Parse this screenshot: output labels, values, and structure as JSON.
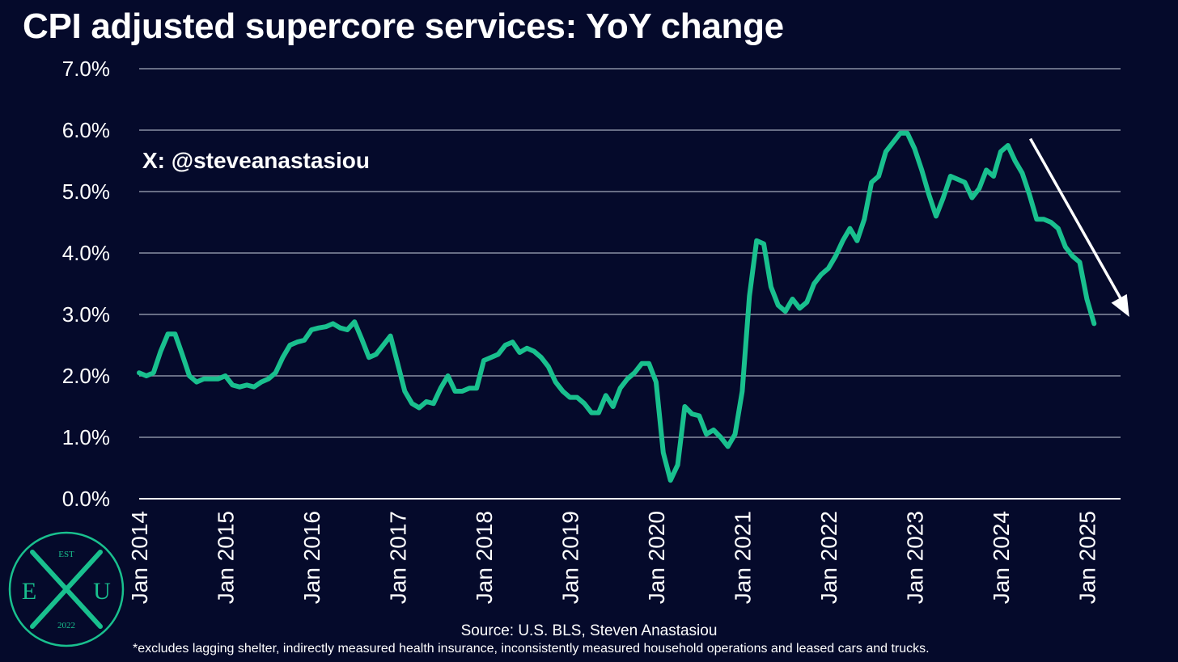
{
  "title": "CPI adjusted supercore services: YoY change",
  "annotation": "X: @steveanastasiou",
  "source": "Source: U.S. BLS, Steven Anastasiou",
  "footnote": "*excludes lagging shelter, indirectly measured health insurance, inconsistently measured household operations and leased cars and trucks.",
  "logo": {
    "top": "EST",
    "left": "E",
    "right": "U",
    "bottom": "2022",
    "color": "#19c08e"
  },
  "colors": {
    "background": "#050a2b",
    "line": "#19c08e",
    "grid": "#8a8fa3",
    "text": "#ffffff",
    "arrow": "#ffffff"
  },
  "chart_data": {
    "type": "line",
    "title": "CPI adjusted supercore services: YoY change",
    "ylim": [
      0,
      7
    ],
    "yticks": [
      0,
      1,
      2,
      3,
      4,
      5,
      6,
      7
    ],
    "ytick_labels": [
      "0.0%",
      "1.0%",
      "2.0%",
      "3.0%",
      "4.0%",
      "5.0%",
      "6.0%",
      "7.0%"
    ],
    "xticks": [
      "Jan 2014",
      "Jan 2015",
      "Jan 2016",
      "Jan 2017",
      "Jan 2018",
      "Jan 2019",
      "Jan 2020",
      "Jan 2021",
      "Jan 2022",
      "Jan 2023",
      "Jan 2024",
      "Jan 2025"
    ],
    "x_start": "Jan 2014",
    "x_end": "Apr 2025",
    "grid": true,
    "trend_arrow": {
      "from": "Apr 2024",
      "to": "Jun 2025",
      "y_from": 5.9,
      "y_to": 3.0
    },
    "series": [
      {
        "color": "#19c08e",
        "values": [
          2.05,
          2.0,
          2.05,
          2.4,
          2.68,
          2.68,
          2.35,
          2.0,
          1.9,
          1.95,
          1.95,
          1.95,
          2.0,
          1.85,
          1.82,
          1.85,
          1.82,
          1.9,
          1.95,
          2.05,
          2.3,
          2.5,
          2.55,
          2.58,
          2.75,
          2.78,
          2.8,
          2.85,
          2.78,
          2.75,
          2.88,
          2.6,
          2.3,
          2.35,
          2.5,
          2.65,
          2.2,
          1.75,
          1.55,
          1.48,
          1.58,
          1.55,
          1.8,
          2.0,
          1.75,
          1.75,
          1.8,
          1.8,
          2.25,
          2.3,
          2.35,
          2.5,
          2.55,
          2.38,
          2.45,
          2.4,
          2.3,
          2.15,
          1.9,
          1.75,
          1.65,
          1.65,
          1.55,
          1.4,
          1.4,
          1.68,
          1.5,
          1.8,
          1.95,
          2.05,
          2.2,
          2.2,
          1.9,
          0.75,
          0.3,
          0.55,
          1.5,
          1.38,
          1.35,
          1.05,
          1.12,
          1.0,
          0.85,
          1.05,
          1.75,
          3.3,
          4.2,
          4.15,
          3.45,
          3.15,
          3.05,
          3.25,
          3.1,
          3.2,
          3.5,
          3.65,
          3.75,
          3.95,
          4.2,
          4.4,
          4.2,
          4.55,
          5.15,
          5.25,
          5.65,
          5.8,
          5.95,
          5.95,
          5.7,
          5.35,
          4.95,
          4.6,
          4.9,
          5.25,
          5.2,
          5.15,
          4.9,
          5.05,
          5.35,
          5.25,
          5.65,
          5.75,
          5.5,
          5.3,
          4.95,
          4.55,
          4.55,
          4.5,
          4.4,
          4.1,
          3.95,
          3.85,
          3.25,
          2.85
        ]
      }
    ]
  }
}
